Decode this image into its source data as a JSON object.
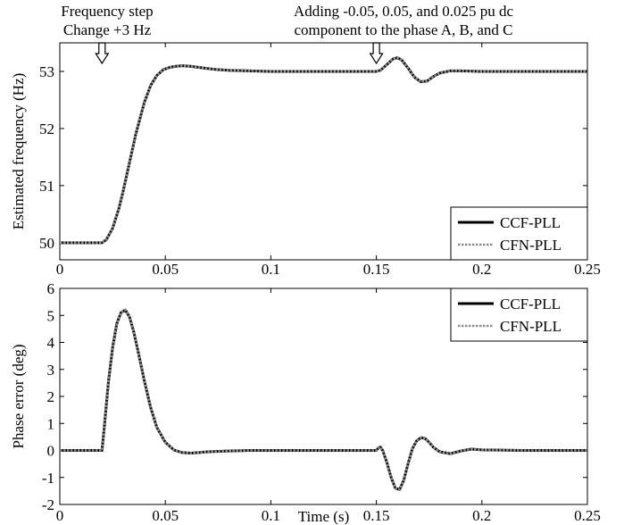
{
  "annotations": {
    "left_line1": "Frequency step",
    "left_line2": "Change +3 Hz",
    "right_line1": "Adding -0.05, 0.05, and 0.025 pu dc",
    "right_line2": "component to the phase A, B, and C",
    "arrow_times": [
      0.02,
      0.15
    ]
  },
  "colors": {
    "ccf": "#000000",
    "cfn": "#8c8c8c"
  },
  "chart_data": [
    {
      "type": "line",
      "xlabel": "",
      "ylabel": "Estimated frequency (Hz)",
      "xlim": [
        0,
        0.25
      ],
      "ylim": [
        49.7,
        53.5
      ],
      "xticks": [
        0,
        0.05,
        0.1,
        0.15,
        0.2,
        0.25
      ],
      "xtick_labels": [
        "0",
        "0.05",
        "0.1",
        "0.15",
        "0.2",
        "0.25"
      ],
      "yticks": [
        50,
        51,
        52,
        53
      ],
      "ytick_labels": [
        "50",
        "51",
        "52",
        "53"
      ],
      "legend_position": "bottom-right",
      "series": [
        {
          "name": "CCF-PLL",
          "style": "solid",
          "x": [
            0,
            0.02,
            0.022,
            0.025,
            0.028,
            0.03,
            0.033,
            0.036,
            0.04,
            0.043,
            0.046,
            0.049,
            0.052,
            0.055,
            0.058,
            0.062,
            0.066,
            0.07,
            0.075,
            0.08,
            0.09,
            0.1,
            0.12,
            0.14,
            0.15,
            0.152,
            0.155,
            0.158,
            0.16,
            0.162,
            0.165,
            0.168,
            0.171,
            0.174,
            0.177,
            0.18,
            0.185,
            0.19,
            0.2,
            0.22,
            0.25
          ],
          "y": [
            50,
            50,
            50.05,
            50.25,
            50.6,
            50.9,
            51.4,
            51.9,
            52.45,
            52.75,
            52.93,
            53.03,
            53.07,
            53.09,
            53.1,
            53.09,
            53.07,
            53.05,
            53.03,
            53.02,
            53.01,
            53.0,
            53.0,
            53.0,
            53.0,
            53.02,
            53.12,
            53.22,
            53.24,
            53.2,
            53.06,
            52.9,
            52.82,
            52.83,
            52.91,
            52.97,
            53.01,
            53.01,
            53.0,
            53.0,
            53.0
          ]
        },
        {
          "name": "CFN-PLL",
          "style": "dotted",
          "x": [
            0,
            0.02,
            0.022,
            0.025,
            0.028,
            0.03,
            0.033,
            0.036,
            0.04,
            0.043,
            0.046,
            0.049,
            0.052,
            0.055,
            0.058,
            0.062,
            0.066,
            0.07,
            0.075,
            0.08,
            0.09,
            0.1,
            0.12,
            0.14,
            0.15,
            0.152,
            0.155,
            0.158,
            0.16,
            0.162,
            0.165,
            0.168,
            0.171,
            0.174,
            0.177,
            0.18,
            0.185,
            0.19,
            0.2,
            0.22,
            0.25
          ],
          "y": [
            50,
            50,
            50.05,
            50.25,
            50.6,
            50.9,
            51.4,
            51.9,
            52.45,
            52.75,
            52.93,
            53.03,
            53.07,
            53.09,
            53.1,
            53.09,
            53.07,
            53.05,
            53.03,
            53.02,
            53.01,
            53.0,
            53.0,
            53.0,
            53.0,
            53.02,
            53.12,
            53.22,
            53.24,
            53.2,
            53.06,
            52.9,
            52.82,
            52.83,
            52.91,
            52.97,
            53.01,
            53.01,
            53.0,
            53.0,
            53.0
          ]
        }
      ]
    },
    {
      "type": "line",
      "xlabel": "Time (s)",
      "ylabel": "Phase error (deg)",
      "xlim": [
        0,
        0.25
      ],
      "ylim": [
        -2,
        6
      ],
      "xticks": [
        0,
        0.05,
        0.1,
        0.15,
        0.2,
        0.25
      ],
      "xtick_labels": [
        "0",
        "0.05",
        "0.1",
        "0.15",
        "0.2",
        "0.25"
      ],
      "yticks": [
        -2,
        -1,
        0,
        1,
        2,
        3,
        4,
        5,
        6
      ],
      "ytick_labels": [
        "-2",
        "-1",
        "0",
        "1",
        "2",
        "3",
        "4",
        "5",
        "6"
      ],
      "legend_position": "top-right",
      "series": [
        {
          "name": "CCF-PLL",
          "style": "solid",
          "x": [
            0,
            0.02,
            0.021,
            0.023,
            0.025,
            0.027,
            0.029,
            0.031,
            0.033,
            0.035,
            0.037,
            0.04,
            0.043,
            0.046,
            0.05,
            0.054,
            0.058,
            0.062,
            0.066,
            0.07,
            0.08,
            0.09,
            0.1,
            0.12,
            0.14,
            0.15,
            0.151,
            0.152,
            0.153,
            0.155,
            0.157,
            0.159,
            0.161,
            0.163,
            0.165,
            0.167,
            0.169,
            0.171,
            0.173,
            0.175,
            0.177,
            0.18,
            0.185,
            0.19,
            0.195,
            0.2,
            0.22,
            0.25
          ],
          "y": [
            0,
            0,
            0.8,
            2.5,
            3.8,
            4.7,
            5.1,
            5.2,
            4.95,
            4.4,
            3.7,
            2.6,
            1.6,
            0.85,
            0.3,
            0.02,
            -0.08,
            -0.1,
            -0.08,
            -0.05,
            -0.02,
            0,
            0,
            0,
            0,
            0,
            0.1,
            0.12,
            0.0,
            -0.45,
            -1.0,
            -1.4,
            -1.45,
            -1.1,
            -0.5,
            0.05,
            0.35,
            0.47,
            0.45,
            0.3,
            0.12,
            -0.05,
            -0.12,
            -0.02,
            0.05,
            0.02,
            0,
            0
          ]
        },
        {
          "name": "CFN-PLL",
          "style": "dotted",
          "x": [
            0,
            0.02,
            0.021,
            0.023,
            0.025,
            0.027,
            0.029,
            0.031,
            0.033,
            0.035,
            0.037,
            0.04,
            0.043,
            0.046,
            0.05,
            0.054,
            0.058,
            0.062,
            0.066,
            0.07,
            0.08,
            0.09,
            0.1,
            0.12,
            0.14,
            0.15,
            0.151,
            0.152,
            0.153,
            0.155,
            0.157,
            0.159,
            0.161,
            0.163,
            0.165,
            0.167,
            0.169,
            0.171,
            0.173,
            0.175,
            0.177,
            0.18,
            0.185,
            0.19,
            0.195,
            0.2,
            0.22,
            0.25
          ],
          "y": [
            0,
            0,
            0.8,
            2.5,
            3.8,
            4.7,
            5.1,
            5.2,
            4.95,
            4.4,
            3.7,
            2.6,
            1.6,
            0.85,
            0.3,
            0.02,
            -0.08,
            -0.1,
            -0.08,
            -0.05,
            -0.02,
            0,
            0,
            0,
            0,
            0,
            0.1,
            0.12,
            0.0,
            -0.45,
            -1.0,
            -1.4,
            -1.45,
            -1.1,
            -0.5,
            0.05,
            0.35,
            0.47,
            0.45,
            0.3,
            0.12,
            -0.05,
            -0.12,
            -0.02,
            0.05,
            0.02,
            0,
            0
          ]
        }
      ]
    }
  ]
}
